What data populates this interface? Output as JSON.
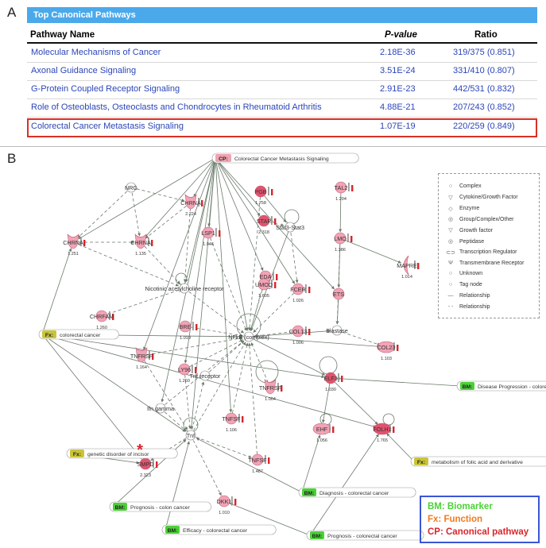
{
  "panel_a": {
    "letter": "A",
    "title": "Top Canonical Pathways",
    "headers": {
      "name": "Pathway Name",
      "pvalue": "P-value",
      "ratio": "Ratio"
    },
    "rows": [
      {
        "name": "Molecular Mechanisms of Cancer",
        "pvalue": "2.18E-36",
        "ratio": "319/375 (0.851)"
      },
      {
        "name": "Axonal Guidance Signaling",
        "pvalue": "3.51E-24",
        "ratio": "331/410 (0.807)"
      },
      {
        "name": "G-Protein Coupled Receptor Signaling",
        "pvalue": "2.91E-23",
        "ratio": "442/531 (0.832)"
      },
      {
        "name": "Role of Osteoblasts, Osteoclasts and Chondrocytes in Rheumatoid Arthritis",
        "pvalue": "4.88E-21",
        "ratio": "207/243 (0.852)"
      },
      {
        "name": "Colorectal Cancer Metastasis Signaling",
        "pvalue": "1.07E-19",
        "ratio": "220/259 (0.849)"
      }
    ],
    "highlighted_row": 4,
    "highlight_color": "#d93025",
    "header_color": "#4aa9ea"
  },
  "panel_b": {
    "letter": "B",
    "tags": {
      "cp_top": {
        "type": "CP:",
        "text": "Colorectal Cancer Metastasis Signaling"
      },
      "fx_cancer": {
        "type": "Fx:",
        "text": "colorectal cancer"
      },
      "bm_progression": {
        "type": "BM:",
        "text": "Disease Progression - colorectal cancer"
      },
      "fx_incisor": {
        "type": "Fx:",
        "text": "genetic disorder of incisor"
      },
      "bm_colon": {
        "type": "BM:",
        "text": "Prognosis - colon cancer"
      },
      "bm_diagnosis": {
        "type": "BM:",
        "text": "Diagnosis - colorectal cancer"
      },
      "fx_folic": {
        "type": "Fx:",
        "text": "metabolism of folic acid and derivative"
      },
      "bm_efficacy": {
        "type": "BM:",
        "text": "Efficacy - colorectal cancer"
      },
      "bm_prognosis": {
        "type": "BM:",
        "text": "Prognosis - colorectal cancer"
      }
    },
    "nodes": {
      "nrg": "NRG",
      "chrna_top": "CHRNA",
      "chrna_left": "CHRNA",
      "chrna_mid": "CHRNA",
      "pgb": "PGB",
      "stap": "STAP",
      "stat3": "Stat3-Stat3",
      "tal2": "TAL2",
      "lmo": "LMO",
      "mapre": "MAPRE",
      "lsp1": "LSP1",
      "eda": "EDA",
      "umod": "UMOD",
      "fcer": "FCER",
      "ets": "ETS",
      "nicotinic": "Nicotinic acetylcholine receptor",
      "chrfam": "CHRFAM",
      "bre": "BRE",
      "nfkb": "NFkB (complex)",
      "col13": "COL13",
      "elastase": "Elastase",
      "col23": "COL23",
      "tnfrsf_left": "TNFRSF",
      "ly96": "LY96",
      "tnf_receptor": "Tnf receptor",
      "tnfrsf_mid": "TNFRSF",
      "elf3": "ELF3",
      "ifn_gamma": "Ifn gamma",
      "tnfsf_mid": "TNFSF",
      "tnf": "Tnf",
      "ehf": "EHF",
      "folh1": "FOLH1",
      "smpd": "SMPD",
      "tnfsf_low": "TNFSF",
      "dkk1": "DKK1"
    },
    "values": {
      "chrna_top": "2.224",
      "chrna_left": "1.251",
      "chrna_mid": "1.135",
      "pgb": "1.758",
      "stap": "2.318",
      "tal2": "1.204",
      "lmo": "1.386",
      "mapre": "1.014",
      "lsp1": "1.046",
      "eda": "1.022",
      "umod": "1.605",
      "fcer": "1.026",
      "chrfam": "1.260",
      "bre": "1.019",
      "col13": "1.006",
      "col23": "1.103",
      "tnfrsf_left": "1.164",
      "ly96": "1.260",
      "tnfrsf_mid": "1.004",
      "elf3": "1.030",
      "tnfsf_mid": "1.106",
      "ehf": "1.056",
      "folh1": "1.765",
      "smpd": "2.323",
      "tnfsf_low": "1.487",
      "dkk1": "1.010"
    },
    "legend": {
      "items": [
        "Complex",
        "Cytokine/Growth Factor",
        "Enzyme",
        "Group/Complex/Other",
        "Growth factor",
        "Peptidase",
        "Transcription Regulator",
        "Transmembrane Receptor",
        "Unknown",
        "Tag node",
        "Relationship",
        "Relationship"
      ]
    },
    "key": {
      "bm": "BM: Biomarker",
      "fx": "Fx:  Function",
      "cp": "CP: Canonical pathway"
    },
    "asterisk": "*",
    "colors": {
      "bm_tag": "#4cd137",
      "fx_tag": "#c9c43a",
      "cp_tag": "#f0a3b0",
      "node_fill": "#f2a3b5",
      "node_dark": "#e2536d",
      "edge": "#6a7a6a"
    }
  }
}
